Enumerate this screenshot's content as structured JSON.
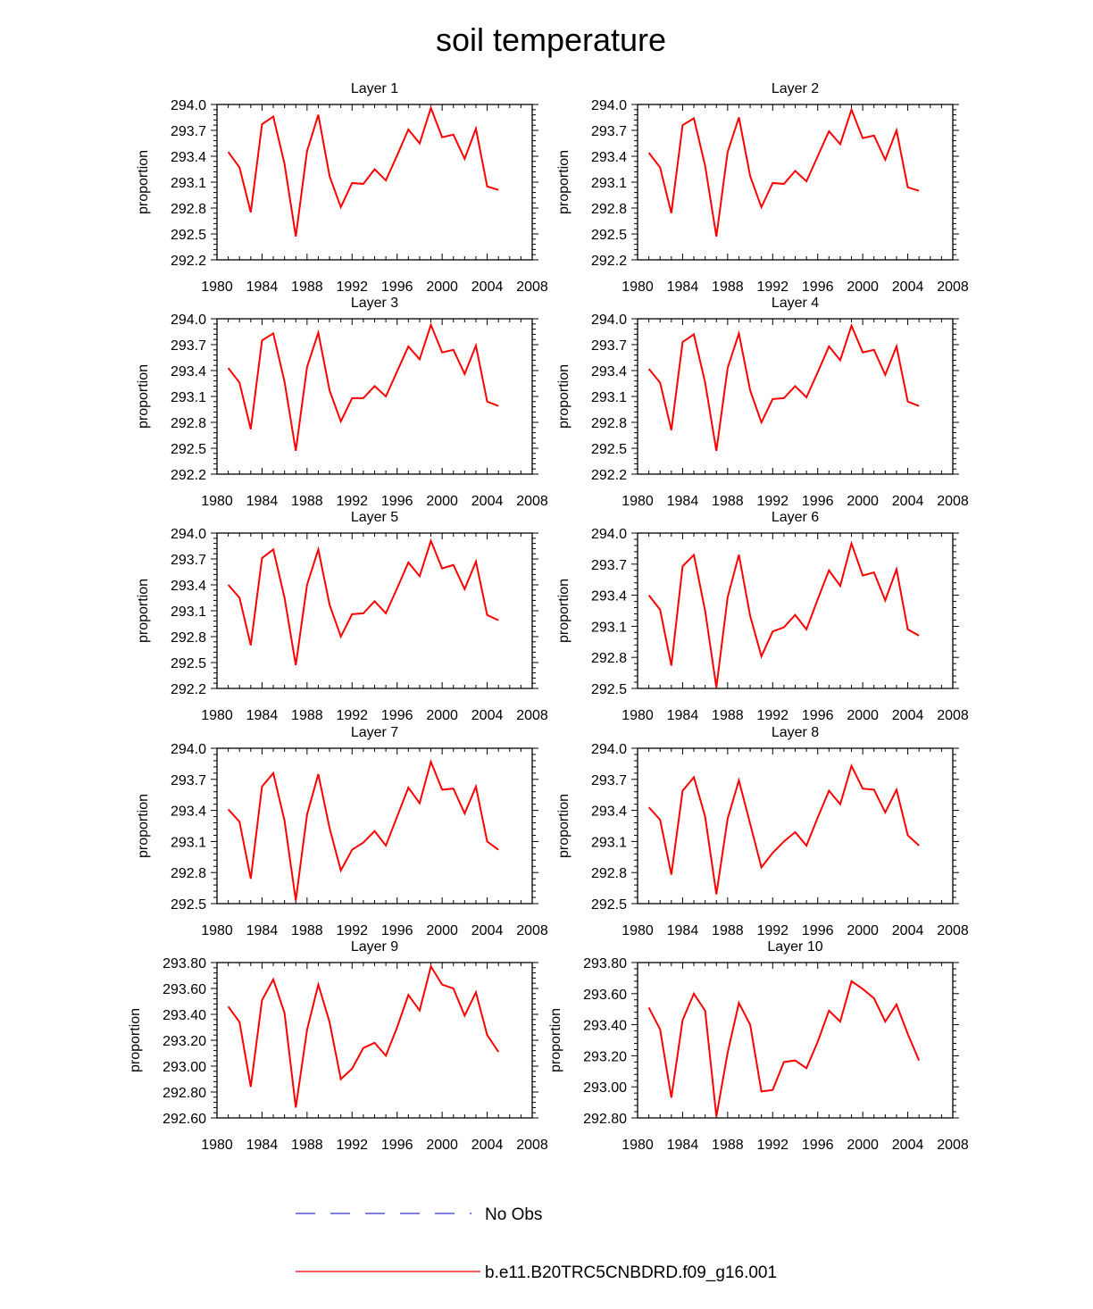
{
  "figure": {
    "title": "soil temperature"
  },
  "legend": {
    "position": "bottom-center",
    "items": [
      {
        "label": "No Obs",
        "color": "#3333cc",
        "dash": "dashed"
      },
      {
        "label": "b.e11.B20TRC5CNBDRD.f09_g16.001",
        "color": "#ff0000",
        "dash": "solid"
      }
    ]
  },
  "chart_data": [
    {
      "type": "line",
      "title": "Layer 1",
      "xlabel": "",
      "ylabel": "proportion",
      "xlim": [
        1980,
        2008
      ],
      "xticks": [
        1980,
        1984,
        1988,
        1992,
        1996,
        2000,
        2004,
        2008
      ],
      "ylim": [
        292.2,
        294.0
      ],
      "yticks": [
        "292.2",
        "292.5",
        "292.8",
        "293.1",
        "293.4",
        "293.7",
        "294.0"
      ],
      "x": [
        1981,
        1982,
        1983,
        1984,
        1985,
        1986,
        1987,
        1988,
        1989,
        1990,
        1991,
        1992,
        1993,
        1994,
        1995,
        1996,
        1997,
        1998,
        1999,
        2000,
        2001,
        2002,
        2003,
        2004,
        2005
      ],
      "series": [
        {
          "values": [
            293.45,
            293.27,
            292.75,
            293.77,
            293.86,
            293.31,
            292.47,
            293.46,
            293.88,
            293.17,
            292.81,
            293.09,
            293.08,
            293.25,
            293.12,
            293.41,
            293.71,
            293.55,
            293.96,
            293.62,
            293.65,
            293.37,
            293.72,
            293.05,
            293.01
          ],
          "color": "#ff0000"
        }
      ]
    },
    {
      "type": "line",
      "title": "Layer 2",
      "xlabel": "",
      "ylabel": "proportion",
      "xlim": [
        1980,
        2008
      ],
      "xticks": [
        1980,
        1984,
        1988,
        1992,
        1996,
        2000,
        2004,
        2008
      ],
      "ylim": [
        292.2,
        294.0
      ],
      "yticks": [
        "292.2",
        "292.5",
        "292.8",
        "293.1",
        "293.4",
        "293.7",
        "294.0"
      ],
      "x": [
        1981,
        1982,
        1983,
        1984,
        1985,
        1986,
        1987,
        1988,
        1989,
        1990,
        1991,
        1992,
        1993,
        1994,
        1995,
        1996,
        1997,
        1998,
        1999,
        2000,
        2001,
        2002,
        2003,
        2004,
        2005
      ],
      "series": [
        {
          "values": [
            293.44,
            293.27,
            292.74,
            293.76,
            293.84,
            293.29,
            292.47,
            293.45,
            293.85,
            293.17,
            292.81,
            293.09,
            293.08,
            293.23,
            293.11,
            293.4,
            293.69,
            293.54,
            293.94,
            293.61,
            293.64,
            293.36,
            293.7,
            293.04,
            293.0
          ],
          "color": "#ff0000"
        }
      ]
    },
    {
      "type": "line",
      "title": "Layer 3",
      "xlabel": "",
      "ylabel": "proportion",
      "xlim": [
        1980,
        2008
      ],
      "xticks": [
        1980,
        1984,
        1988,
        1992,
        1996,
        2000,
        2004,
        2008
      ],
      "ylim": [
        292.2,
        294.0
      ],
      "yticks": [
        "292.2",
        "292.5",
        "292.8",
        "293.1",
        "293.4",
        "293.7",
        "294.0"
      ],
      "x": [
        1981,
        1982,
        1983,
        1984,
        1985,
        1986,
        1987,
        1988,
        1989,
        1990,
        1991,
        1992,
        1993,
        1994,
        1995,
        1996,
        1997,
        1998,
        1999,
        2000,
        2001,
        2002,
        2003,
        2004,
        2005
      ],
      "series": [
        {
          "values": [
            293.43,
            293.26,
            292.72,
            293.75,
            293.83,
            293.27,
            292.47,
            293.44,
            293.84,
            293.17,
            292.81,
            293.08,
            293.08,
            293.22,
            293.1,
            293.39,
            293.68,
            293.53,
            293.93,
            293.61,
            293.64,
            293.36,
            293.69,
            293.04,
            292.99
          ],
          "color": "#ff0000"
        }
      ]
    },
    {
      "type": "line",
      "title": "Layer 4",
      "xlabel": "",
      "ylabel": "proportion",
      "xlim": [
        1980,
        2008
      ],
      "xticks": [
        1980,
        1984,
        1988,
        1992,
        1996,
        2000,
        2004,
        2008
      ],
      "ylim": [
        292.2,
        294.0
      ],
      "yticks": [
        "292.2",
        "292.5",
        "292.8",
        "293.1",
        "293.4",
        "293.7",
        "294.0"
      ],
      "x": [
        1981,
        1982,
        1983,
        1984,
        1985,
        1986,
        1987,
        1988,
        1989,
        1990,
        1991,
        1992,
        1993,
        1994,
        1995,
        1996,
        1997,
        1998,
        1999,
        2000,
        2001,
        2002,
        2003,
        2004,
        2005
      ],
      "series": [
        {
          "values": [
            293.42,
            293.26,
            292.71,
            293.73,
            293.82,
            293.26,
            292.47,
            293.43,
            293.83,
            293.17,
            292.8,
            293.07,
            293.08,
            293.22,
            293.09,
            293.38,
            293.68,
            293.52,
            293.92,
            293.61,
            293.64,
            293.35,
            293.68,
            293.04,
            292.99
          ],
          "color": "#ff0000"
        }
      ]
    },
    {
      "type": "line",
      "title": "Layer 5",
      "xlabel": "",
      "ylabel": "proportion",
      "xlim": [
        1980,
        2008
      ],
      "xticks": [
        1980,
        1984,
        1988,
        1992,
        1996,
        2000,
        2004,
        2008
      ],
      "ylim": [
        292.2,
        294.0
      ],
      "yticks": [
        "292.2",
        "292.5",
        "292.8",
        "293.1",
        "293.4",
        "293.7",
        "294.0"
      ],
      "x": [
        1981,
        1982,
        1983,
        1984,
        1985,
        1986,
        1987,
        1988,
        1989,
        1990,
        1991,
        1992,
        1993,
        1994,
        1995,
        1996,
        1997,
        1998,
        1999,
        2000,
        2001,
        2002,
        2003,
        2004,
        2005
      ],
      "series": [
        {
          "values": [
            293.4,
            293.25,
            292.7,
            293.71,
            293.81,
            293.25,
            292.47,
            293.4,
            293.81,
            293.17,
            292.8,
            293.06,
            293.07,
            293.21,
            293.07,
            293.36,
            293.66,
            293.5,
            293.91,
            293.59,
            293.63,
            293.35,
            293.67,
            293.05,
            292.99
          ],
          "color": "#ff0000"
        }
      ]
    },
    {
      "type": "line",
      "title": "Layer 6",
      "xlabel": "",
      "ylabel": "proportion",
      "xlim": [
        1980,
        2008
      ],
      "xticks": [
        1980,
        1984,
        1988,
        1992,
        1996,
        2000,
        2004,
        2008
      ],
      "ylim": [
        292.5,
        294.0
      ],
      "yticks": [
        "292.5",
        "292.8",
        "293.1",
        "293.4",
        "293.7",
        "294.0"
      ],
      "x": [
        1981,
        1982,
        1983,
        1984,
        1985,
        1986,
        1987,
        1988,
        1989,
        1990,
        1991,
        1992,
        1993,
        1994,
        1995,
        1996,
        1997,
        1998,
        1999,
        2000,
        2001,
        2002,
        2003,
        2004,
        2005
      ],
      "series": [
        {
          "values": [
            293.4,
            293.26,
            292.72,
            293.68,
            293.79,
            293.25,
            292.51,
            293.38,
            293.79,
            293.2,
            292.81,
            293.05,
            293.09,
            293.21,
            293.07,
            293.36,
            293.64,
            293.49,
            293.9,
            293.59,
            293.62,
            293.35,
            293.65,
            293.07,
            293.01
          ],
          "color": "#ff0000"
        }
      ]
    },
    {
      "type": "line",
      "title": "Layer 7",
      "xlabel": "",
      "ylabel": "proportion",
      "xlim": [
        1980,
        2008
      ],
      "xticks": [
        1980,
        1984,
        1988,
        1992,
        1996,
        2000,
        2004,
        2008
      ],
      "ylim": [
        292.5,
        294.0
      ],
      "yticks": [
        "292.5",
        "292.8",
        "293.1",
        "293.4",
        "293.7",
        "294.0"
      ],
      "x": [
        1981,
        1982,
        1983,
        1984,
        1985,
        1986,
        1987,
        1988,
        1989,
        1990,
        1991,
        1992,
        1993,
        1994,
        1995,
        1996,
        1997,
        1998,
        1999,
        2000,
        2001,
        2002,
        2003,
        2004,
        2005
      ],
      "series": [
        {
          "values": [
            293.41,
            293.29,
            292.74,
            293.63,
            293.76,
            293.3,
            292.53,
            293.36,
            293.75,
            293.23,
            292.82,
            293.02,
            293.09,
            293.2,
            293.06,
            293.34,
            293.62,
            293.47,
            293.87,
            293.6,
            293.61,
            293.37,
            293.63,
            293.1,
            293.02
          ],
          "color": "#ff0000"
        }
      ]
    },
    {
      "type": "line",
      "title": "Layer 8",
      "xlabel": "",
      "ylabel": "proportion",
      "xlim": [
        1980,
        2008
      ],
      "xticks": [
        1980,
        1984,
        1988,
        1992,
        1996,
        2000,
        2004,
        2008
      ],
      "ylim": [
        292.5,
        294.0
      ],
      "yticks": [
        "292.5",
        "292.8",
        "293.1",
        "293.4",
        "293.7",
        "294.0"
      ],
      "x": [
        1981,
        1982,
        1983,
        1984,
        1985,
        1986,
        1987,
        1988,
        1989,
        1990,
        1991,
        1992,
        1993,
        1994,
        1995,
        1996,
        1997,
        1998,
        1999,
        2000,
        2001,
        2002,
        2003,
        2004,
        2005
      ],
      "series": [
        {
          "values": [
            293.43,
            293.31,
            292.78,
            293.59,
            293.72,
            293.34,
            292.59,
            293.32,
            293.69,
            293.27,
            292.85,
            292.99,
            293.1,
            293.19,
            293.06,
            293.33,
            293.59,
            293.46,
            293.83,
            293.61,
            293.6,
            293.38,
            293.6,
            293.16,
            293.06
          ],
          "color": "#ff0000"
        }
      ]
    },
    {
      "type": "line",
      "title": "Layer 9",
      "xlabel": "",
      "ylabel": "proportion",
      "xlim": [
        1980,
        2008
      ],
      "xticks": [
        1980,
        1984,
        1988,
        1992,
        1996,
        2000,
        2004,
        2008
      ],
      "ylim": [
        292.6,
        293.8
      ],
      "yticks": [
        "292.60",
        "292.80",
        "293.00",
        "293.20",
        "293.40",
        "293.60",
        "293.80"
      ],
      "x": [
        1981,
        1982,
        1983,
        1984,
        1985,
        1986,
        1987,
        1988,
        1989,
        1990,
        1991,
        1992,
        1993,
        1994,
        1995,
        1996,
        1997,
        1998,
        1999,
        2000,
        2001,
        2002,
        2003,
        2004,
        2005
      ],
      "series": [
        {
          "values": [
            293.46,
            293.34,
            292.84,
            293.51,
            293.67,
            293.41,
            292.68,
            293.28,
            293.63,
            293.34,
            292.9,
            292.98,
            293.14,
            293.18,
            293.08,
            293.3,
            293.55,
            293.43,
            293.77,
            293.63,
            293.6,
            293.39,
            293.57,
            293.24,
            293.11
          ],
          "color": "#ff0000"
        }
      ]
    },
    {
      "type": "line",
      "title": "Layer 10",
      "xlabel": "",
      "ylabel": "proportion",
      "xlim": [
        1980,
        2008
      ],
      "xticks": [
        1980,
        1984,
        1988,
        1992,
        1996,
        2000,
        2004,
        2008
      ],
      "ylim": [
        292.8,
        293.8
      ],
      "yticks": [
        "292.80",
        "293.00",
        "293.20",
        "293.40",
        "293.60",
        "293.80"
      ],
      "x": [
        1981,
        1982,
        1983,
        1984,
        1985,
        1986,
        1987,
        1988,
        1989,
        1990,
        1991,
        1992,
        1993,
        1994,
        1995,
        1996,
        1997,
        1998,
        1999,
        2000,
        2001,
        2002,
        2003,
        2004,
        2005
      ],
      "series": [
        {
          "values": [
            293.51,
            293.37,
            292.93,
            293.43,
            293.6,
            293.49,
            292.81,
            293.22,
            293.54,
            293.4,
            292.97,
            292.98,
            293.16,
            293.17,
            293.12,
            293.29,
            293.49,
            293.42,
            293.68,
            293.63,
            293.57,
            293.42,
            293.53,
            293.34,
            293.17
          ],
          "color": "#ff0000"
        }
      ]
    }
  ]
}
